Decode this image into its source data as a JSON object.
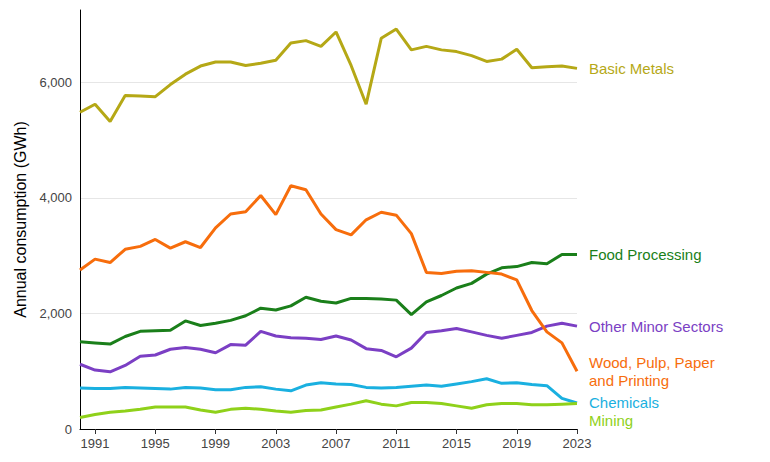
{
  "chart_data": {
    "type": "line",
    "y_label": "Annual consumption (GWh)",
    "x": [
      1990,
      1991,
      1992,
      1993,
      1994,
      1995,
      1996,
      1997,
      1998,
      1999,
      2000,
      2001,
      2002,
      2003,
      2004,
      2005,
      2006,
      2007,
      2008,
      2009,
      2010,
      2011,
      2012,
      2013,
      2014,
      2015,
      2016,
      2017,
      2018,
      2019,
      2020,
      2021,
      2022,
      2023
    ],
    "series": [
      {
        "name": "Basic Metals",
        "color": "#b5a816",
        "values": [
          5480,
          5620,
          5320,
          5770,
          5760,
          5750,
          5960,
          6140,
          6280,
          6350,
          6350,
          6290,
          6330,
          6380,
          6680,
          6720,
          6620,
          6870,
          6290,
          5620,
          6760,
          6920,
          6560,
          6620,
          6560,
          6530,
          6460,
          6360,
          6400,
          6570,
          6250,
          6270,
          6280,
          6240
        ]
      },
      {
        "name": "Food Processing",
        "color": "#1a7f1a",
        "values": [
          1510,
          1490,
          1470,
          1600,
          1690,
          1700,
          1710,
          1870,
          1790,
          1830,
          1880,
          1960,
          2090,
          2060,
          2130,
          2280,
          2210,
          2180,
          2260,
          2260,
          2250,
          2230,
          1980,
          2200,
          2310,
          2440,
          2520,
          2680,
          2790,
          2810,
          2880,
          2860,
          3020,
          3020
        ]
      },
      {
        "name": "Other Minor Sectors",
        "color": "#7b3fc4",
        "values": [
          1120,
          1020,
          990,
          1100,
          1260,
          1280,
          1380,
          1410,
          1380,
          1320,
          1460,
          1450,
          1690,
          1610,
          1580,
          1570,
          1550,
          1610,
          1540,
          1390,
          1360,
          1250,
          1400,
          1670,
          1700,
          1740,
          1680,
          1620,
          1570,
          1620,
          1670,
          1780,
          1830,
          1780
        ]
      },
      {
        "name": "Wood, Pulp, Paper and Printing",
        "color": "#f76d0c",
        "values": [
          2750,
          2940,
          2880,
          3110,
          3160,
          3280,
          3130,
          3240,
          3140,
          3480,
          3720,
          3760,
          4040,
          3710,
          4210,
          4140,
          3720,
          3450,
          3360,
          3620,
          3750,
          3700,
          3380,
          2710,
          2690,
          2730,
          2740,
          2710,
          2680,
          2580,
          2050,
          1680,
          1490,
          1000
        ]
      },
      {
        "name": "Chemicals",
        "color": "#1ab0e0",
        "values": [
          710,
          700,
          700,
          720,
          710,
          700,
          690,
          720,
          710,
          680,
          680,
          720,
          730,
          690,
          660,
          760,
          800,
          780,
          770,
          720,
          710,
          720,
          740,
          760,
          740,
          780,
          820,
          870,
          790,
          800,
          770,
          750,
          530,
          450
        ]
      },
      {
        "name": "Mining",
        "color": "#8fd11a",
        "values": [
          200,
          250,
          290,
          310,
          340,
          380,
          380,
          380,
          330,
          290,
          340,
          360,
          340,
          310,
          290,
          320,
          330,
          380,
          430,
          490,
          430,
          400,
          460,
          460,
          440,
          400,
          360,
          420,
          440,
          440,
          420,
          420,
          430,
          440
        ]
      }
    ],
    "xlim": [
      1990,
      2023
    ],
    "xticks": [
      1991,
      1995,
      1999,
      2003,
      2007,
      2011,
      2015,
      2019,
      2023
    ],
    "ylim": [
      0,
      7250
    ],
    "yticks": [
      0,
      {
        "value": 2000,
        "label": "2,000"
      },
      {
        "value": 4000,
        "label": "4,000"
      },
      {
        "value": 6000,
        "label": "6,000"
      }
    ],
    "grid": true
  }
}
